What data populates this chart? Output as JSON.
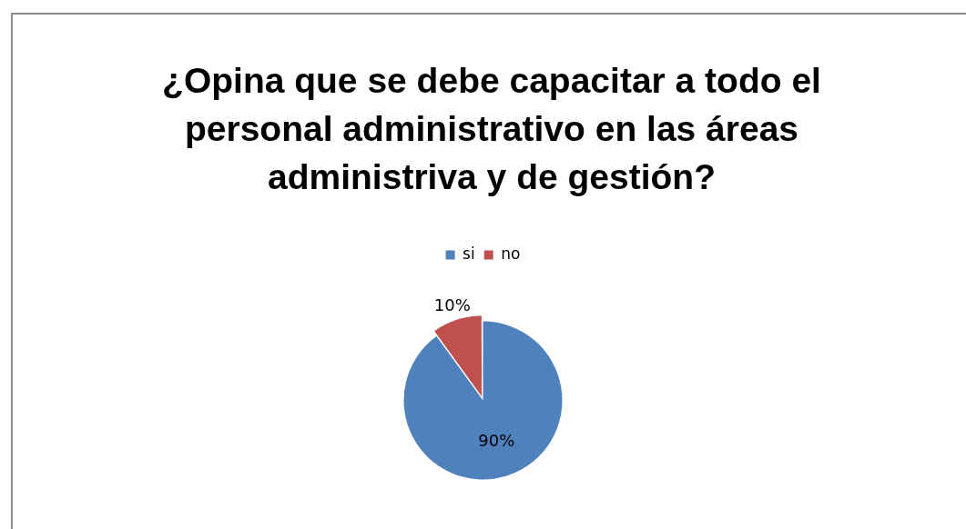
{
  "chart_data": {
    "type": "pie",
    "title": "¿Opina que se debe capacitar a todo el personal administrativo en las áreas administriva y de gestión?",
    "categories": [
      "si",
      "no"
    ],
    "values": [
      90,
      10
    ],
    "colors": [
      "#4f81bd",
      "#c0504d"
    ],
    "value_labels": [
      "90%",
      "10%"
    ],
    "legend": "top"
  }
}
